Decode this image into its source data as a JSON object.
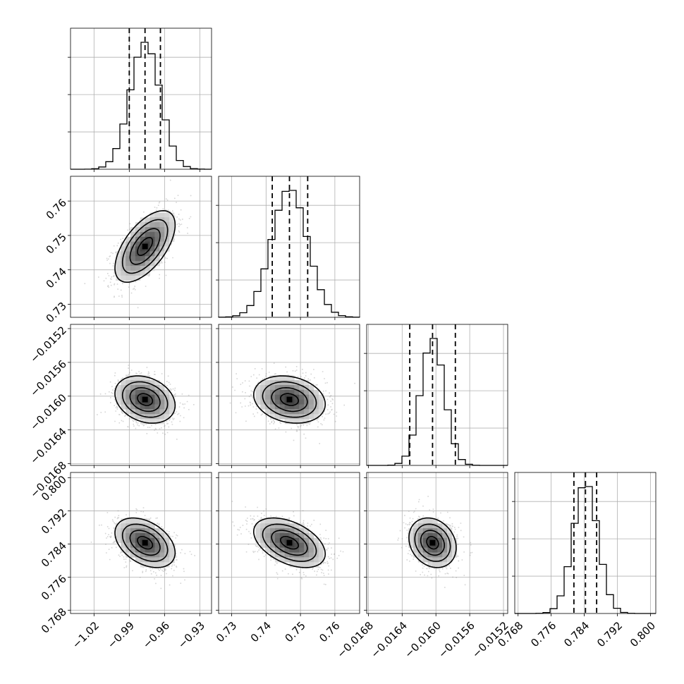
{
  "chart_data": {
    "type": "corner",
    "parameters": [
      {
        "index": 0,
        "mean": -0.9766,
        "sd": 0.0128,
        "range": [
          -1.04,
          -0.92
        ],
        "ticks": [
          -1.02,
          -0.99,
          -0.96,
          -0.93
        ],
        "tick_labels": [
          "−1.02",
          "−0.99",
          "−0.96",
          "−0.93"
        ],
        "quantiles": [
          -0.99,
          -0.9766,
          -0.9635
        ]
      },
      {
        "index": 1,
        "mean": 0.7468,
        "sd": 0.0052,
        "range": [
          0.7262,
          0.7672
        ],
        "ticks": [
          0.73,
          0.74,
          0.75,
          0.76
        ],
        "tick_labels": [
          "0.73",
          "0.74",
          "0.75",
          "0.76"
        ],
        "quantiles": [
          0.7418,
          0.7468,
          0.7521
        ]
      },
      {
        "index": 2,
        "mean": -0.01604,
        "sd": 0.00014,
        "range": [
          -0.01682,
          -0.01515
        ],
        "ticks": [
          -0.0168,
          -0.0164,
          -0.016,
          -0.0156,
          -0.0152
        ],
        "tick_labels": [
          "−0.0168",
          "−0.0164",
          "−0.0160",
          "−0.0156",
          "−0.0152"
        ],
        "quantiles": [
          -0.01631,
          -0.01604,
          -0.01577
        ]
      },
      {
        "index": 3,
        "mean": 0.7843,
        "sd": 0.003,
        "range": [
          0.7672,
          0.8013
        ],
        "ticks": [
          0.768,
          0.776,
          0.784,
          0.792,
          0.8
        ],
        "tick_labels": [
          "0.768",
          "0.776",
          "0.784",
          "0.792",
          "0.800"
        ],
        "quantiles": [
          0.7815,
          0.7843,
          0.787
        ]
      }
    ],
    "hist_bins": 20,
    "correlations": {
      "1-0": 0.6,
      "2-0": -0.25,
      "2-1": -0.2,
      "3-0": -0.4,
      "3-1": -0.45,
      "3-2": -0.2
    },
    "contour_levels": [
      0.5,
      1.0,
      1.5,
      2.0
    ],
    "grid": true,
    "colors": {
      "points": "#888888",
      "line": "#000000",
      "grid": "#b0b0b0"
    }
  }
}
